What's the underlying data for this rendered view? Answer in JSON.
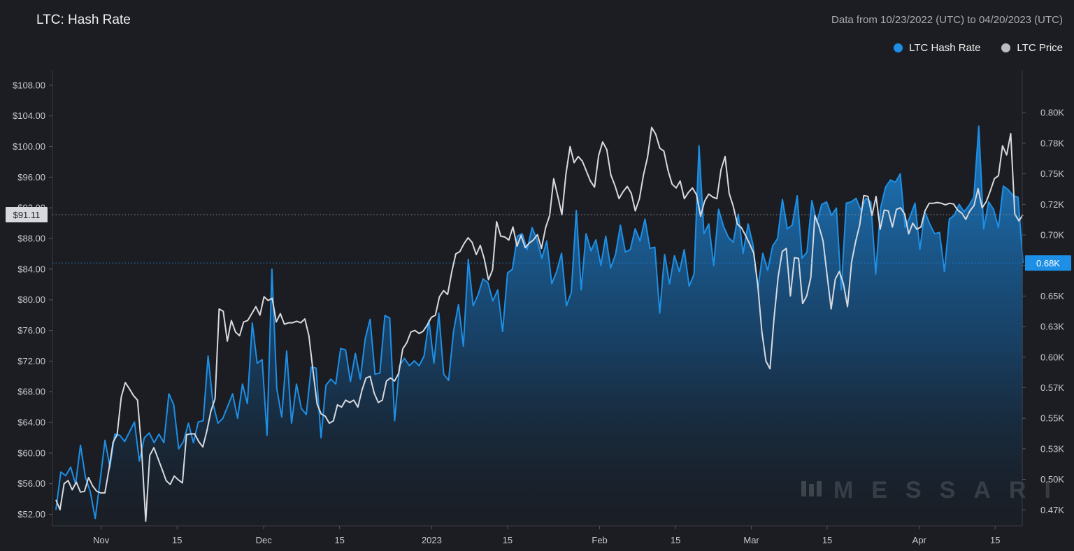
{
  "header": {
    "title": "LTC: Hash Rate",
    "range": "Data from 10/23/2022 (UTC) to 04/20/2023 (UTC)"
  },
  "legend": [
    {
      "name": "LTC Hash Rate",
      "color": "#1d8fe6"
    },
    {
      "name": "LTC Price",
      "color": "#b9bcc4"
    }
  ],
  "watermark": "MESSARI",
  "colors": {
    "background": "#1c1d22",
    "hash_rate": "#1d8fe6",
    "price": "#d7d9de",
    "axis_line": "#3a3c44"
  },
  "chart_data": {
    "type": "line",
    "x_start": "2022-10-23",
    "x_end": "2023-04-20",
    "x_tick_labels": [
      "Nov",
      "15",
      "Dec",
      "15",
      "2023",
      "15",
      "Feb",
      "15",
      "Mar",
      "15",
      "Apr",
      "15"
    ],
    "x_tick_dates": [
      "2022-11-01",
      "2022-11-15",
      "2022-12-01",
      "2022-12-15",
      "2023-01-01",
      "2023-01-15",
      "2023-02-01",
      "2023-02-15",
      "2023-03-01",
      "2023-03-15",
      "2023-04-01",
      "2023-04-15"
    ],
    "y_left": {
      "ylim": [
        50.5,
        110
      ],
      "ticks": [
        52,
        56,
        60,
        64,
        68,
        72,
        76,
        80,
        84,
        88,
        92,
        96,
        100,
        104,
        108
      ],
      "tick_labels": [
        "$52.00",
        "$56.00",
        "$60.00",
        "$64.00",
        "$68.00",
        "$72.00",
        "$76.00",
        "$80.00",
        "$84.00",
        "$88.00",
        "$92.00",
        "$96.00",
        "$100.00",
        "$104.00",
        "$108.00"
      ],
      "current_value_label": "$91.11",
      "current_value": 91.11
    },
    "y_right": {
      "ylim": [
        0.462,
        0.835
      ],
      "ticks": [
        0.475,
        0.5,
        0.525,
        0.55,
        0.575,
        0.6,
        0.625,
        0.65,
        0.675,
        0.7,
        0.725,
        0.75,
        0.775,
        0.8
      ],
      "tick_labels": [
        "0.47K",
        "0.50K",
        "0.53K",
        "0.55K",
        "0.57K",
        "0.60K",
        "0.63K",
        "0.65K",
        "0.68K",
        "0.70K",
        "0.72K",
        "0.75K",
        "0.78K",
        "0.80K"
      ],
      "current_value_label": "0.68K",
      "current_value": 0.677
    },
    "series": [
      {
        "name": "LTC Hash Rate",
        "axis": "right",
        "color": "#1d8fe6",
        "fill": true,
        "values": [
          0.475,
          0.506,
          0.503,
          0.51,
          0.496,
          0.528,
          0.502,
          0.49,
          0.468,
          0.499,
          0.532,
          0.51,
          0.537,
          0.536,
          0.531,
          0.539,
          0.547,
          0.515,
          0.534,
          0.538,
          0.53,
          0.537,
          0.53,
          0.57,
          0.561,
          0.525,
          0.531,
          0.546,
          0.53,
          0.547,
          0.548,
          0.601,
          0.562,
          0.546,
          0.55,
          0.56,
          0.57,
          0.55,
          0.578,
          0.562,
          0.628,
          0.595,
          0.598,
          0.536,
          0.672,
          0.574,
          0.551,
          0.605,
          0.546,
          0.578,
          0.558,
          0.553,
          0.592,
          0.591,
          0.534,
          0.577,
          0.582,
          0.578,
          0.607,
          0.606,
          0.58,
          0.603,
          0.582,
          0.615,
          0.631,
          0.586,
          0.587,
          0.634,
          0.632,
          0.548,
          0.593,
          0.599,
          0.593,
          0.597,
          0.593,
          0.601,
          0.63,
          0.595,
          0.636,
          0.586,
          0.581,
          0.621,
          0.643,
          0.609,
          0.68,
          0.642,
          0.651,
          0.664,
          0.661,
          0.646,
          0.655,
          0.621,
          0.669,
          0.672,
          0.699,
          0.701,
          0.688,
          0.706,
          0.696,
          0.681,
          0.695,
          0.66,
          0.67,
          0.685,
          0.642,
          0.653,
          0.72,
          0.655,
          0.701,
          0.687,
          0.696,
          0.675,
          0.699,
          0.673,
          0.684,
          0.708,
          0.686,
          0.688,
          0.705,
          0.695,
          0.713,
          0.689,
          0.69,
          0.636,
          0.684,
          0.66,
          0.683,
          0.67,
          0.688,
          0.658,
          0.668,
          0.773,
          0.701,
          0.709,
          0.675,
          0.721,
          0.707,
          0.698,
          0.694,
          0.717,
          0.685,
          0.709,
          0.692,
          0.656,
          0.685,
          0.671,
          0.691,
          0.697,
          0.729,
          0.705,
          0.708,
          0.732,
          0.681,
          0.686,
          0.728,
          0.71,
          0.725,
          0.727,
          0.716,
          0.722,
          0.655,
          0.726,
          0.727,
          0.73,
          0.72,
          0.73,
          0.727,
          0.668,
          0.722,
          0.739,
          0.745,
          0.743,
          0.75,
          0.706,
          0.715,
          0.726,
          0.688,
          0.719,
          0.709,
          0.701,
          0.702,
          0.67,
          0.713,
          0.716,
          0.725,
          0.719,
          0.724,
          0.731,
          0.789,
          0.705,
          0.727,
          0.721,
          0.706,
          0.74,
          0.737,
          0.732,
          0.731,
          0.677
        ],
        "color_note": ""
      },
      {
        "name": "LTC Price",
        "axis": "left",
        "color": "#d7d9de",
        "fill": false,
        "values": [
          53.9,
          52.6,
          56.0,
          56.4,
          55.2,
          56.2,
          54.9,
          55.0,
          56.8,
          55.7,
          55.0,
          54.8,
          54.8,
          57.9,
          61.4,
          62.4,
          67.3,
          69.2,
          68.4,
          67.5,
          66.9,
          60.5,
          51.1,
          59.7,
          60.7,
          59.3,
          57.9,
          56.4,
          55.9,
          57.0,
          56.5,
          56.1,
          62.4,
          62.5,
          62.5,
          61.5,
          60.8,
          62.9,
          65.5,
          67.1,
          78.8,
          78.5,
          74.6,
          77.3,
          75.8,
          75.3,
          77.1,
          77.3,
          78.2,
          79.1,
          78.0,
          80.4,
          79.9,
          80.2,
          77.1,
          78.2,
          76.8,
          77.0,
          77.0,
          77.2,
          77.0,
          77.5,
          75.3,
          70.8,
          66.4,
          65.1,
          64.8,
          63.9,
          64.2,
          66.3,
          66.0,
          66.9,
          66.6,
          66.9,
          66.0,
          68.2,
          69.8,
          70.0,
          67.8,
          66.6,
          66.9,
          69.4,
          69.8,
          69.4,
          70.4,
          73.6,
          74.4,
          75.8,
          76.0,
          75.6,
          75.9,
          76.7,
          77.7,
          78.0,
          80.4,
          81.2,
          80.7,
          83.6,
          86.0,
          86.3,
          87.3,
          88.1,
          87.5,
          85.9,
          87.1,
          85.3,
          82.6,
          83.9,
          90.2,
          88.3,
          88.2,
          87.8,
          89.5,
          87.0,
          88.4,
          86.8,
          87.4,
          87.8,
          88.5,
          86.7,
          89.4,
          91.0,
          95.8,
          93.5,
          91.1,
          96.4,
          100.0,
          97.9,
          98.7,
          98.1,
          96.8,
          95.5,
          94.7,
          98.8,
          100.6,
          99.6,
          96.3,
          94.9,
          93.2,
          94.1,
          94.8,
          93.9,
          91.6,
          93.2,
          96.3,
          98.6,
          102.5,
          101.6,
          99.8,
          99.4,
          96.9,
          95.1,
          94.6,
          95.5,
          93.2,
          94.0,
          94.6,
          93.7,
          90.9,
          92.9,
          93.8,
          93.4,
          93.2,
          97.0,
          98.7,
          93.9,
          92.2,
          89.9,
          89.4,
          88.4,
          87.3,
          86.1,
          82.0,
          75.9,
          72.0,
          71.0,
          77.6,
          83.0,
          86.3,
          86.7,
          80.5,
          85.5,
          85.4,
          79.5,
          80.5,
          82.9,
          91.0,
          89.6,
          87.7,
          83.2,
          78.8,
          82.7,
          83.7,
          82.1,
          79.1,
          84.9,
          87.6,
          89.8,
          93.6,
          93.5,
          91.0,
          93.5,
          89.2,
          91.7,
          91.6,
          89.5,
          91.8,
          92.0,
          91.2,
          88.6,
          90.0,
          89.2,
          89.5,
          91.6,
          92.6,
          92.6,
          92.7,
          92.6,
          92.4,
          92.6,
          92.5,
          91.7,
          91.3,
          90.5,
          91.6,
          92.3,
          94.5,
          92.0,
          92.8,
          94.2,
          95.8,
          96.2,
          100.1,
          98.9,
          101.7,
          91.2,
          90.3,
          91.1
        ]
      }
    ]
  }
}
